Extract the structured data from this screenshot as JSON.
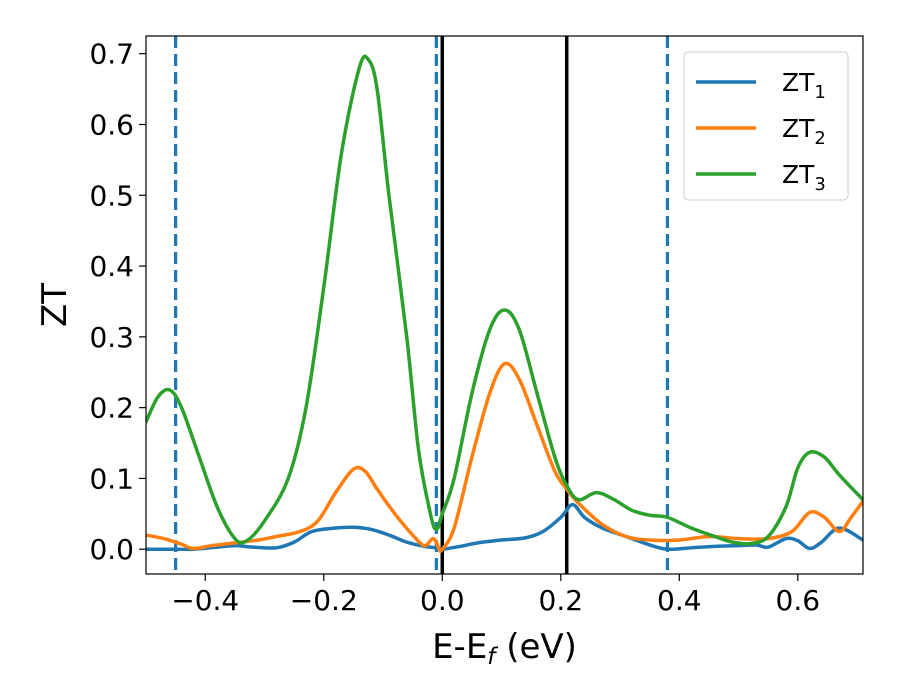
{
  "chart_data": {
    "type": "line",
    "xlabel_main": "E-E",
    "xlabel_sub": "f",
    "xlabel_unit": " (eV)",
    "ylabel": "ZT",
    "xlim": [
      -0.5,
      0.71
    ],
    "ylim": [
      -0.035,
      0.725
    ],
    "x_ticks": [
      -0.4,
      -0.2,
      0.0,
      0.2,
      0.4,
      0.6
    ],
    "x_tick_labels": [
      "−0.4",
      "−0.2",
      "0.0",
      "0.2",
      "0.4",
      "0.6"
    ],
    "y_ticks": [
      0.0,
      0.1,
      0.2,
      0.3,
      0.4,
      0.5,
      0.6,
      0.7
    ],
    "y_tick_labels": [
      "0.0",
      "0.1",
      "0.2",
      "0.3",
      "0.4",
      "0.5",
      "0.6",
      "0.7"
    ],
    "grid": false,
    "legend_position": "top-right",
    "vertical_lines": [
      {
        "x": -0.45,
        "style": "dashed",
        "color": "#1f77b4"
      },
      {
        "x": -0.01,
        "style": "dashed",
        "color": "#1f77b4"
      },
      {
        "x": 0.38,
        "style": "dashed",
        "color": "#1f77b4"
      },
      {
        "x": 0.0,
        "style": "solid",
        "color": "#000000"
      },
      {
        "x": 0.21,
        "style": "solid",
        "color": "#000000"
      }
    ],
    "series": [
      {
        "name": "ZT",
        "sub": "1",
        "color": "#1f77b4",
        "points": [
          [
            -0.5,
            0.0
          ],
          [
            -0.45,
            0.0
          ],
          [
            -0.42,
            0.0
          ],
          [
            -0.38,
            0.003
          ],
          [
            -0.35,
            0.005
          ],
          [
            -0.32,
            0.003
          ],
          [
            -0.28,
            0.002
          ],
          [
            -0.25,
            0.01
          ],
          [
            -0.22,
            0.025
          ],
          [
            -0.18,
            0.03
          ],
          [
            -0.15,
            0.031
          ],
          [
            -0.12,
            0.028
          ],
          [
            -0.09,
            0.02
          ],
          [
            -0.06,
            0.01
          ],
          [
            -0.03,
            0.004
          ],
          [
            -0.01,
            0.002
          ],
          [
            0.0,
            0.0
          ],
          [
            0.03,
            0.004
          ],
          [
            0.06,
            0.009
          ],
          [
            0.1,
            0.013
          ],
          [
            0.14,
            0.016
          ],
          [
            0.17,
            0.025
          ],
          [
            0.2,
            0.045
          ],
          [
            0.22,
            0.063
          ],
          [
            0.24,
            0.045
          ],
          [
            0.27,
            0.03
          ],
          [
            0.31,
            0.018
          ],
          [
            0.35,
            0.006
          ],
          [
            0.38,
            0.0
          ],
          [
            0.42,
            0.002
          ],
          [
            0.46,
            0.004
          ],
          [
            0.5,
            0.005
          ],
          [
            0.53,
            0.006
          ],
          [
            0.55,
            0.003
          ],
          [
            0.58,
            0.015
          ],
          [
            0.6,
            0.012
          ],
          [
            0.62,
            0.001
          ],
          [
            0.64,
            0.01
          ],
          [
            0.67,
            0.03
          ],
          [
            0.71,
            0.013
          ]
        ]
      },
      {
        "name": "ZT",
        "sub": "2",
        "color": "#ff7f0e",
        "points": [
          [
            -0.5,
            0.02
          ],
          [
            -0.47,
            0.015
          ],
          [
            -0.44,
            0.007
          ],
          [
            -0.42,
            0.001
          ],
          [
            -0.39,
            0.005
          ],
          [
            -0.35,
            0.009
          ],
          [
            -0.31,
            0.013
          ],
          [
            -0.28,
            0.018
          ],
          [
            -0.24,
            0.025
          ],
          [
            -0.21,
            0.04
          ],
          [
            -0.18,
            0.08
          ],
          [
            -0.15,
            0.113
          ],
          [
            -0.13,
            0.11
          ],
          [
            -0.11,
            0.085
          ],
          [
            -0.08,
            0.05
          ],
          [
            -0.05,
            0.02
          ],
          [
            -0.03,
            0.005
          ],
          [
            -0.015,
            0.015
          ],
          [
            -0.005,
            0.0
          ],
          [
            0.0,
            0.0
          ],
          [
            0.02,
            0.03
          ],
          [
            0.05,
            0.13
          ],
          [
            0.08,
            0.22
          ],
          [
            0.105,
            0.262
          ],
          [
            0.13,
            0.24
          ],
          [
            0.16,
            0.175
          ],
          [
            0.19,
            0.11
          ],
          [
            0.21,
            0.085
          ],
          [
            0.23,
            0.065
          ],
          [
            0.27,
            0.035
          ],
          [
            0.31,
            0.018
          ],
          [
            0.35,
            0.013
          ],
          [
            0.4,
            0.013
          ],
          [
            0.45,
            0.018
          ],
          [
            0.5,
            0.015
          ],
          [
            0.55,
            0.015
          ],
          [
            0.59,
            0.025
          ],
          [
            0.62,
            0.052
          ],
          [
            0.645,
            0.045
          ],
          [
            0.67,
            0.025
          ],
          [
            0.69,
            0.045
          ],
          [
            0.71,
            0.068
          ]
        ]
      },
      {
        "name": "ZT",
        "sub": "3",
        "color": "#2ca02c",
        "points": [
          [
            -0.5,
            0.18
          ],
          [
            -0.48,
            0.215
          ],
          [
            -0.46,
            0.225
          ],
          [
            -0.44,
            0.2
          ],
          [
            -0.41,
            0.13
          ],
          [
            -0.38,
            0.06
          ],
          [
            -0.35,
            0.015
          ],
          [
            -0.33,
            0.012
          ],
          [
            -0.3,
            0.04
          ],
          [
            -0.26,
            0.1
          ],
          [
            -0.23,
            0.2
          ],
          [
            -0.2,
            0.37
          ],
          [
            -0.17,
            0.56
          ],
          [
            -0.14,
            0.68
          ],
          [
            -0.125,
            0.692
          ],
          [
            -0.11,
            0.65
          ],
          [
            -0.09,
            0.5
          ],
          [
            -0.06,
            0.3
          ],
          [
            -0.04,
            0.14
          ],
          [
            -0.02,
            0.05
          ],
          [
            -0.01,
            0.028
          ],
          [
            0.0,
            0.05
          ],
          [
            0.02,
            0.1
          ],
          [
            0.05,
            0.22
          ],
          [
            0.08,
            0.31
          ],
          [
            0.105,
            0.338
          ],
          [
            0.13,
            0.31
          ],
          [
            0.16,
            0.22
          ],
          [
            0.19,
            0.13
          ],
          [
            0.21,
            0.09
          ],
          [
            0.23,
            0.07
          ],
          [
            0.26,
            0.08
          ],
          [
            0.29,
            0.07
          ],
          [
            0.32,
            0.055
          ],
          [
            0.35,
            0.048
          ],
          [
            0.38,
            0.045
          ],
          [
            0.42,
            0.03
          ],
          [
            0.46,
            0.018
          ],
          [
            0.49,
            0.01
          ],
          [
            0.52,
            0.008
          ],
          [
            0.55,
            0.018
          ],
          [
            0.58,
            0.06
          ],
          [
            0.6,
            0.115
          ],
          [
            0.62,
            0.137
          ],
          [
            0.645,
            0.13
          ],
          [
            0.67,
            0.105
          ],
          [
            0.71,
            0.07
          ]
        ]
      }
    ]
  }
}
